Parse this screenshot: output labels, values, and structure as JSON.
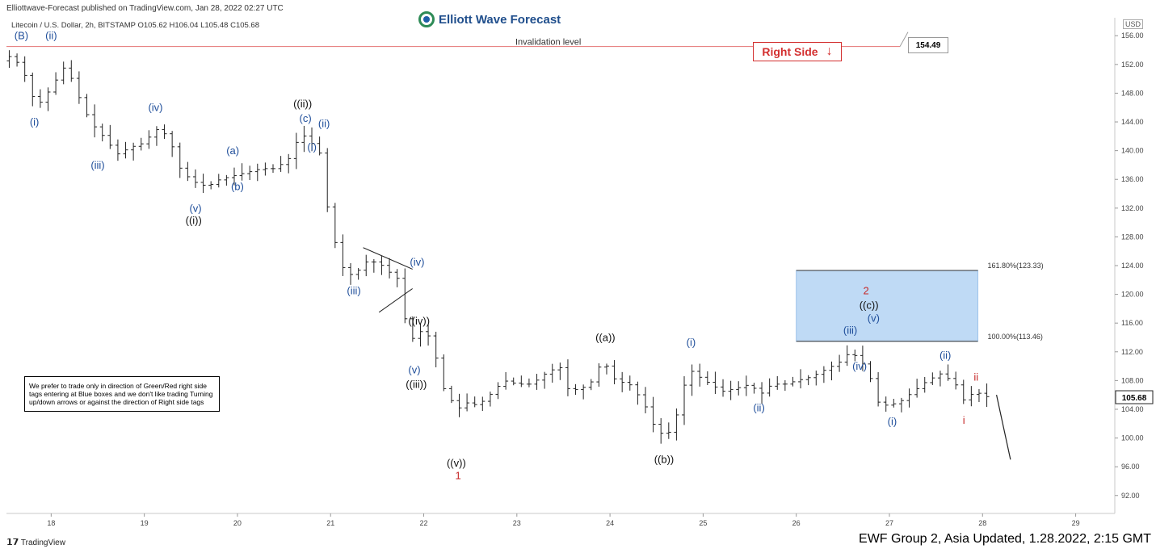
{
  "header": {
    "publish_line": "Elliottwave-Forecast published on TradingView.com, Jan 28, 2022 02:27 UTC",
    "symbol_line": "Litecoin / U.S. Dollar, 2h, BITSTAMP  O105.62  H106.04  L105.48  C105.68",
    "logo_text": "Elliott Wave Forecast",
    "currency_badge": "USD"
  },
  "notice_text": "We prefer to trade only in direction of Green/Red right side tags entering at Blue boxes and we don't like trading Turning up/down arrows or against the direction of Right side tags",
  "right_side_tag": {
    "label": "Right Side",
    "arrow": "↓",
    "color": "#d32f2f"
  },
  "invalidation": {
    "label": "Invalidation level",
    "price": 154.49,
    "price_label": "154.49",
    "color": "#e57373"
  },
  "current_price": {
    "value": 105.68,
    "label": "105.68"
  },
  "blue_box": {
    "top": 123.33,
    "bottom": 113.46,
    "x_start": 26.0,
    "x_end": 27.95,
    "top_label": "161.80%(123.33)",
    "bottom_label": "100.00%(113.46)",
    "color": "#bfdaf5"
  },
  "footer": {
    "tv_brand": "TradingView",
    "update_note": "EWF Group 2, Asia Updated, 1.28.2022, 2:15 GMT"
  },
  "chart_data": {
    "type": "ohlc",
    "title": "",
    "x_axis": {
      "ticks": [
        18,
        19,
        20,
        21,
        22,
        23,
        24,
        25,
        26,
        27,
        28,
        29
      ],
      "range": [
        17.52,
        29.42
      ]
    },
    "y_axis": {
      "ticks": [
        156,
        152,
        148,
        144,
        140,
        136,
        132,
        128,
        124,
        120,
        116,
        112,
        108,
        104,
        100,
        96,
        92
      ],
      "range": [
        89.5,
        158.5
      ],
      "tick_labels": [
        "156.00",
        "152.00",
        "148.00",
        "144.00",
        "140.00",
        "136.00",
        "132.00",
        "128.00",
        "124.00",
        "120.00",
        "116.00",
        "112.00",
        "108.00",
        "104.00",
        "100.00",
        "96.00",
        "92.00"
      ]
    },
    "x_tick_labels": [
      "18",
      "19",
      "20",
      "21",
      "22",
      "23",
      "24",
      "25",
      "26",
      "27",
      "28",
      "29"
    ],
    "anchors": [
      [
        17.55,
        152.5
      ],
      [
        17.62,
        153.5
      ],
      [
        17.78,
        150
      ],
      [
        17.88,
        146
      ],
      [
        18.0,
        148
      ],
      [
        18.1,
        150
      ],
      [
        18.2,
        152
      ],
      [
        18.32,
        148
      ],
      [
        18.46,
        144
      ],
      [
        18.6,
        142
      ],
      [
        18.75,
        139.5
      ],
      [
        18.9,
        140.5
      ],
      [
        19.02,
        141
      ],
      [
        19.18,
        143
      ],
      [
        19.3,
        142
      ],
      [
        19.44,
        137
      ],
      [
        19.6,
        135.5
      ],
      [
        19.72,
        135
      ],
      [
        19.85,
        136
      ],
      [
        20.0,
        136.5
      ],
      [
        20.15,
        137
      ],
      [
        20.3,
        137.5
      ],
      [
        20.45,
        137.5
      ],
      [
        20.6,
        139
      ],
      [
        20.72,
        142.5
      ],
      [
        20.84,
        141
      ],
      [
        20.92,
        140
      ],
      [
        21.02,
        131
      ],
      [
        21.15,
        124
      ],
      [
        21.28,
        122.5
      ],
      [
        21.42,
        124.5
      ],
      [
        21.55,
        124.5
      ],
      [
        21.68,
        123
      ],
      [
        21.78,
        122
      ],
      [
        21.88,
        113
      ],
      [
        21.98,
        115
      ],
      [
        22.12,
        114
      ],
      [
        22.25,
        107
      ],
      [
        22.4,
        104
      ],
      [
        22.52,
        105
      ],
      [
        22.62,
        104.5
      ],
      [
        22.75,
        106
      ],
      [
        22.9,
        108
      ],
      [
        23.05,
        107.5
      ],
      [
        23.2,
        107.5
      ],
      [
        23.35,
        109
      ],
      [
        23.5,
        110
      ],
      [
        23.6,
        106.5
      ],
      [
        23.75,
        107
      ],
      [
        23.86,
        108
      ],
      [
        23.96,
        111
      ],
      [
        24.1,
        108
      ],
      [
        24.25,
        107.5
      ],
      [
        24.4,
        105
      ],
      [
        24.5,
        102
      ],
      [
        24.6,
        100.5
      ],
      [
        24.72,
        101
      ],
      [
        24.8,
        106
      ],
      [
        24.9,
        109.5
      ],
      [
        25.0,
        108.5
      ],
      [
        25.12,
        107.5
      ],
      [
        25.25,
        106.5
      ],
      [
        25.42,
        107
      ],
      [
        25.55,
        107.5
      ],
      [
        25.65,
        106
      ],
      [
        25.78,
        107.5
      ],
      [
        25.92,
        107.5
      ],
      [
        26.05,
        108
      ],
      [
        26.2,
        108.5
      ],
      [
        26.35,
        109.5
      ],
      [
        26.5,
        110.5
      ],
      [
        26.62,
        112
      ],
      [
        26.72,
        111
      ],
      [
        26.82,
        109
      ],
      [
        26.92,
        105
      ],
      [
        27.02,
        104.5
      ],
      [
        27.15,
        105
      ],
      [
        27.3,
        106.5
      ],
      [
        27.45,
        108
      ],
      [
        27.6,
        109
      ],
      [
        27.75,
        107.5
      ],
      [
        27.85,
        105
      ],
      [
        27.95,
        106.5
      ],
      [
        28.05,
        106
      ],
      [
        28.1,
        105.68
      ]
    ],
    "projection": [
      [
        28.15,
        106.0
      ],
      [
        28.3,
        97.0
      ]
    ],
    "triangle": {
      "points": [
        [
          21.35,
          126.5
        ],
        [
          21.88,
          123.5
        ],
        [
          21.52,
          117.5
        ],
        [
          21.88,
          120.8
        ]
      ]
    },
    "wave_labels": [
      {
        "text": "(B)",
        "x": 17.68,
        "y": 155.5,
        "color": "#1f4e9a"
      },
      {
        "text": "(ii)",
        "x": 18.0,
        "y": 155.5,
        "color": "#1f4e9a"
      },
      {
        "text": "(i)",
        "x": 17.82,
        "y": 143.5,
        "color": "#1f4e9a"
      },
      {
        "text": "(iii)",
        "x": 18.5,
        "y": 137.5,
        "color": "#1f4e9a"
      },
      {
        "text": "(iv)",
        "x": 19.12,
        "y": 145.5,
        "color": "#1f4e9a"
      },
      {
        "text": "(v)",
        "x": 19.55,
        "y": 131.5,
        "color": "#1f4e9a"
      },
      {
        "text": "((i))",
        "x": 19.53,
        "y": 129.8,
        "color": "#111111"
      },
      {
        "text": "(a)",
        "x": 19.95,
        "y": 139.5,
        "color": "#1f4e9a"
      },
      {
        "text": "(b)",
        "x": 20.0,
        "y": 134.5,
        "color": "#1f4e9a"
      },
      {
        "text": "((ii))",
        "x": 20.7,
        "y": 146.0,
        "color": "#111111"
      },
      {
        "text": "(c)",
        "x": 20.73,
        "y": 144.0,
        "color": "#1f4e9a"
      },
      {
        "text": "(ii)",
        "x": 20.93,
        "y": 143.3,
        "color": "#1f4e9a"
      },
      {
        "text": "(i)",
        "x": 20.8,
        "y": 140.0,
        "color": "#1f4e9a"
      },
      {
        "text": "(iii)",
        "x": 21.25,
        "y": 120.0,
        "color": "#1f4e9a"
      },
      {
        "text": "(iv)",
        "x": 21.93,
        "y": 124.0,
        "color": "#1f4e9a"
      },
      {
        "text": "((iv))",
        "x": 21.95,
        "y": 115.8,
        "color": "#111111"
      },
      {
        "text": "(v)",
        "x": 21.9,
        "y": 109.0,
        "color": "#1f4e9a"
      },
      {
        "text": "((iii))",
        "x": 21.92,
        "y": 107.0,
        "color": "#111111"
      },
      {
        "text": "((v))",
        "x": 22.35,
        "y": 96.0,
        "color": "#111111"
      },
      {
        "text": "1",
        "x": 22.37,
        "y": 94.3,
        "color": "#c62828"
      },
      {
        "text": "((a))",
        "x": 23.95,
        "y": 113.5,
        "color": "#111111"
      },
      {
        "text": "((b))",
        "x": 24.58,
        "y": 96.5,
        "color": "#111111"
      },
      {
        "text": "(i)",
        "x": 24.87,
        "y": 112.8,
        "color": "#1f4e9a"
      },
      {
        "text": "(ii)",
        "x": 25.6,
        "y": 103.7,
        "color": "#1f4e9a"
      },
      {
        "text": "(iii)",
        "x": 26.58,
        "y": 114.5,
        "color": "#1f4e9a"
      },
      {
        "text": "(iv)",
        "x": 26.68,
        "y": 109.5,
        "color": "#1f4e9a"
      },
      {
        "text": "2",
        "x": 26.75,
        "y": 120.0,
        "color": "#c62828"
      },
      {
        "text": "((c))",
        "x": 26.78,
        "y": 118.0,
        "color": "#111111"
      },
      {
        "text": "(v)",
        "x": 26.83,
        "y": 116.2,
        "color": "#1f4e9a"
      },
      {
        "text": "(i)",
        "x": 27.03,
        "y": 101.8,
        "color": "#1f4e9a"
      },
      {
        "text": "(ii)",
        "x": 27.6,
        "y": 111.0,
        "color": "#1f4e9a"
      },
      {
        "text": "ii",
        "x": 27.93,
        "y": 108.0,
        "color": "#c62828"
      },
      {
        "text": "i",
        "x": 27.8,
        "y": 102.0,
        "color": "#c62828"
      }
    ]
  }
}
